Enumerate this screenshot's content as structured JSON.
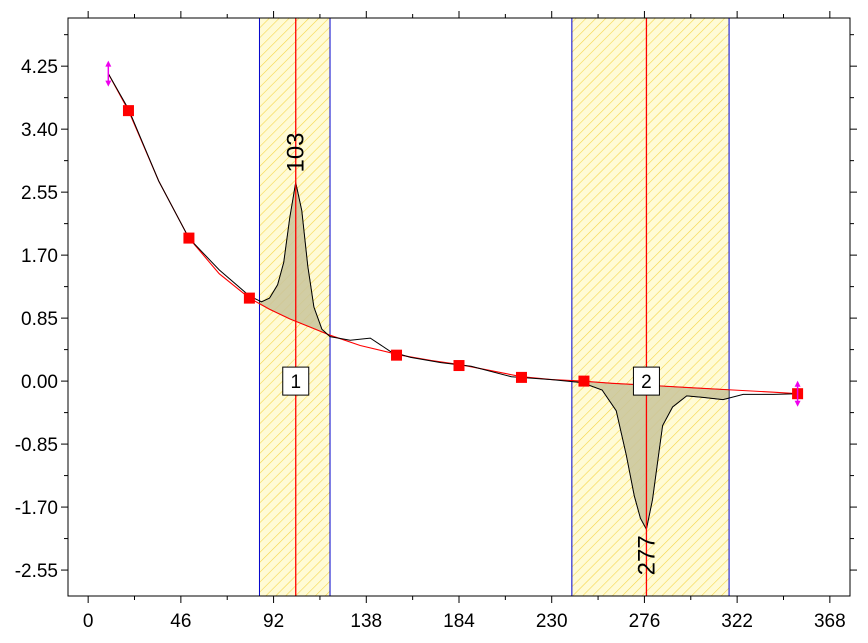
{
  "chart_data": {
    "type": "line",
    "title": "",
    "xlabel": "",
    "ylabel": "",
    "xlim": [
      -10,
      378
    ],
    "ylim": [
      -2.9,
      4.9
    ],
    "grid": false,
    "legend": "none",
    "x_ticks": [
      "0",
      "46",
      "92",
      "138",
      "184",
      "230",
      "276",
      "322",
      "368"
    ],
    "x_tick_values": [
      0,
      46,
      92,
      138,
      184,
      230,
      276,
      322,
      368
    ],
    "y_ticks": [
      "4.25",
      "3.40",
      "2.55",
      "1.70",
      "0.85",
      "0.00",
      "-0.85",
      "-1.70",
      "-2.55"
    ],
    "y_tick_values": [
      4.25,
      3.4,
      2.55,
      1.7,
      0.85,
      0.0,
      -0.85,
      -1.7,
      -2.55
    ],
    "series": [
      {
        "role": "signal",
        "color": "#000000",
        "x": [
          10,
          20,
          35,
          50,
          65,
          80,
          86,
          90,
          94,
          97,
          100,
          103,
          106,
          109,
          112,
          116,
          120,
          130,
          140,
          150,
          160,
          175,
          190,
          210,
          230,
          245,
          255,
          262,
          267,
          271,
          274,
          277,
          280,
          285,
          290,
          297,
          305,
          315,
          325,
          340,
          352
        ],
        "y": [
          4.15,
          3.67,
          2.7,
          1.93,
          1.5,
          1.15,
          1.07,
          1.12,
          1.3,
          1.6,
          2.2,
          2.68,
          2.3,
          1.55,
          1.0,
          0.7,
          0.6,
          0.55,
          0.58,
          0.4,
          0.32,
          0.25,
          0.2,
          0.06,
          0.02,
          -0.02,
          -0.12,
          -0.4,
          -1.0,
          -1.55,
          -1.85,
          -2.0,
          -1.6,
          -0.6,
          -0.35,
          -0.2,
          -0.22,
          -0.25,
          -0.18,
          -0.18,
          -0.17
        ]
      },
      {
        "role": "baseline",
        "color": "#ff0000",
        "x": [
          10,
          20,
          35,
          50,
          65,
          80,
          90,
          100,
          110,
          120,
          135,
          155,
          170,
          185,
          200,
          215,
          230,
          245,
          260,
          280,
          300,
          320,
          340,
          352
        ],
        "y": [
          4.15,
          3.65,
          2.7,
          1.93,
          1.45,
          1.12,
          0.97,
          0.84,
          0.73,
          0.62,
          0.48,
          0.35,
          0.28,
          0.22,
          0.14,
          0.06,
          0.02,
          0.0,
          -0.03,
          -0.06,
          -0.09,
          -0.12,
          -0.15,
          -0.17
        ]
      }
    ],
    "anchor_points": {
      "color": "#ff0000",
      "x": [
        20,
        50,
        80,
        153,
        184,
        215,
        246,
        352
      ],
      "y": [
        3.65,
        1.93,
        1.12,
        0.35,
        0.21,
        0.05,
        0.0,
        -0.17
      ]
    },
    "end_markers": {
      "color": "#ee00ee",
      "x": [
        10,
        352
      ],
      "y": [
        4.15,
        -0.17
      ]
    },
    "peaks": [
      {
        "id": "1",
        "center": 103,
        "label": "103",
        "region": [
          85,
          120
        ],
        "box_y": 0.0
      },
      {
        "id": "2",
        "center": 277,
        "label": "277",
        "region": [
          240,
          318
        ],
        "box_y": 0.0
      }
    ],
    "colors": {
      "axis": "#000000",
      "region_fill": "#fffbd6",
      "region_hatch": "#f5d64a",
      "region_border": "#0000cc",
      "center_line": "#ff0000",
      "peak_fill": "#c9c49b"
    }
  }
}
